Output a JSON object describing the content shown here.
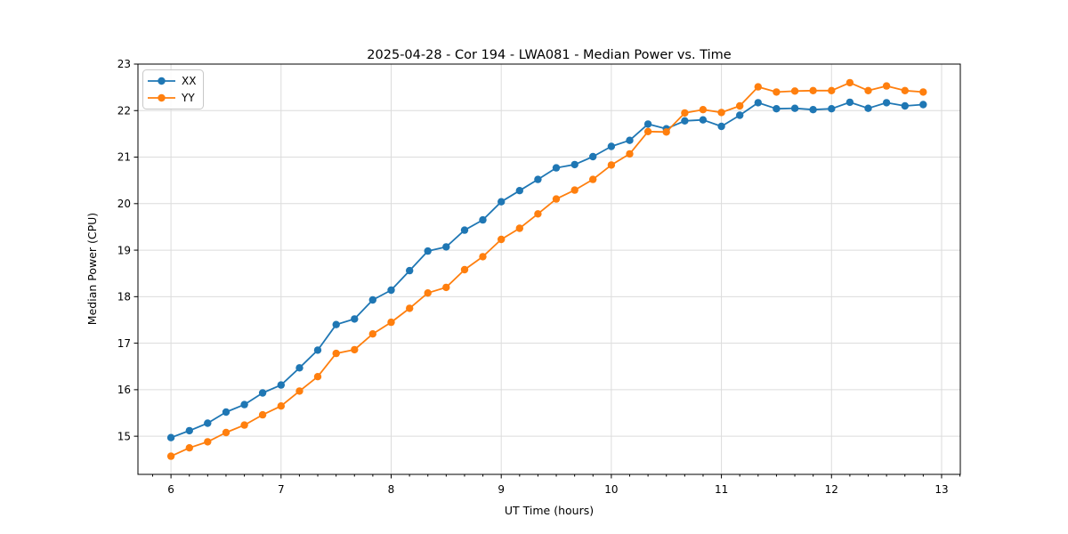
{
  "chart_data": {
    "type": "line",
    "title": "2025-04-28 - Cor 194 - LWA081 - Median Power vs. Time",
    "xlabel": "UT Time (hours)",
    "ylabel": "Median Power (CPU)",
    "xlim": [
      5.7,
      13.17
    ],
    "ylim": [
      14.18,
      23.0
    ],
    "x_ticks": [
      6,
      7,
      8,
      9,
      10,
      11,
      12,
      13
    ],
    "y_ticks": [
      15,
      16,
      17,
      18,
      19,
      20,
      21,
      22,
      23
    ],
    "x_minor_tick_step_hours": 0.16667,
    "grid": true,
    "legend_position": "upper-left",
    "background_color": "#ffffff",
    "grid_color": "#dcdcdc",
    "x": [
      6.0,
      6.167,
      6.333,
      6.5,
      6.667,
      6.833,
      7.0,
      7.167,
      7.333,
      7.5,
      7.667,
      7.833,
      8.0,
      8.167,
      8.333,
      8.5,
      8.667,
      8.833,
      9.0,
      9.167,
      9.333,
      9.5,
      9.667,
      9.833,
      10.0,
      10.167,
      10.333,
      10.5,
      10.667,
      10.833,
      11.0,
      11.167,
      11.333,
      11.5,
      11.667,
      11.833,
      12.0,
      12.167,
      12.333,
      12.5,
      12.667,
      12.833
    ],
    "series": [
      {
        "name": "XX",
        "color": "#1f77b4",
        "values": [
          14.97,
          15.12,
          15.28,
          15.52,
          15.68,
          15.93,
          16.1,
          16.47,
          16.85,
          17.4,
          17.52,
          17.93,
          18.14,
          18.56,
          18.98,
          19.07,
          19.43,
          19.65,
          20.04,
          20.28,
          20.52,
          20.77,
          20.84,
          21.01,
          21.23,
          21.36,
          21.71,
          21.61,
          21.78,
          21.8,
          21.66,
          21.9,
          22.17,
          22.04,
          22.05,
          22.02,
          22.04,
          22.18,
          22.05,
          22.17,
          22.1,
          22.13
        ]
      },
      {
        "name": "YY",
        "color": "#ff7f0e",
        "values": [
          14.57,
          14.75,
          14.88,
          15.08,
          15.24,
          15.46,
          15.65,
          15.97,
          16.28,
          16.78,
          16.86,
          17.2,
          17.45,
          17.75,
          18.08,
          18.2,
          18.58,
          18.86,
          19.23,
          19.47,
          19.78,
          20.1,
          20.29,
          20.52,
          20.83,
          21.07,
          21.55,
          21.54,
          21.95,
          22.02,
          21.96,
          22.1,
          22.51,
          22.4,
          22.42,
          22.43,
          22.43,
          22.6,
          22.43,
          22.53,
          22.43,
          22.4
        ]
      }
    ]
  }
}
